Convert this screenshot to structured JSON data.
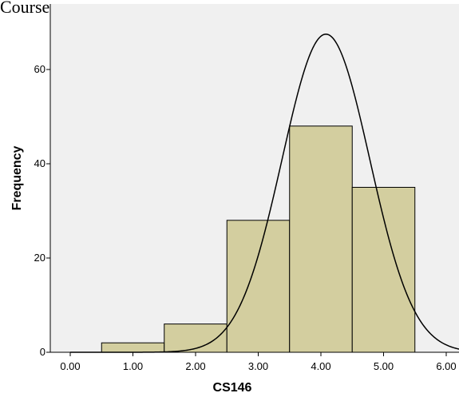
{
  "chart_data": {
    "type": "bar",
    "title": "Course",
    "xlabel": "CS146",
    "ylabel": "Frequency",
    "x_tick_labels": [
      "0.00",
      "1.00",
      "2.00",
      "3.00",
      "4.00",
      "5.00",
      "6.00"
    ],
    "y_tick_labels": [
      "0",
      "20",
      "40",
      "60"
    ],
    "xlim": [
      -0.3,
      6.25
    ],
    "ylim": [
      0,
      72
    ],
    "bins": [
      {
        "x0": 0.5,
        "x1": 1.5,
        "value": 2
      },
      {
        "x0": 1.5,
        "x1": 2.5,
        "value": 6
      },
      {
        "x0": 2.5,
        "x1": 3.5,
        "value": 28
      },
      {
        "x0": 3.5,
        "x1": 4.5,
        "value": 48
      },
      {
        "x0": 4.5,
        "x1": 5.5,
        "value": 35
      }
    ],
    "normal_curve": {
      "mean": 4.08,
      "sd": 0.7,
      "peak": 67.5,
      "x_range": [
        0,
        6.25
      ]
    },
    "grid": false,
    "colors": {
      "plot_background": "#f0f0f0",
      "bar_fill": "#d3ce9f",
      "bar_stroke": "#000000",
      "curve": "#000000"
    }
  }
}
